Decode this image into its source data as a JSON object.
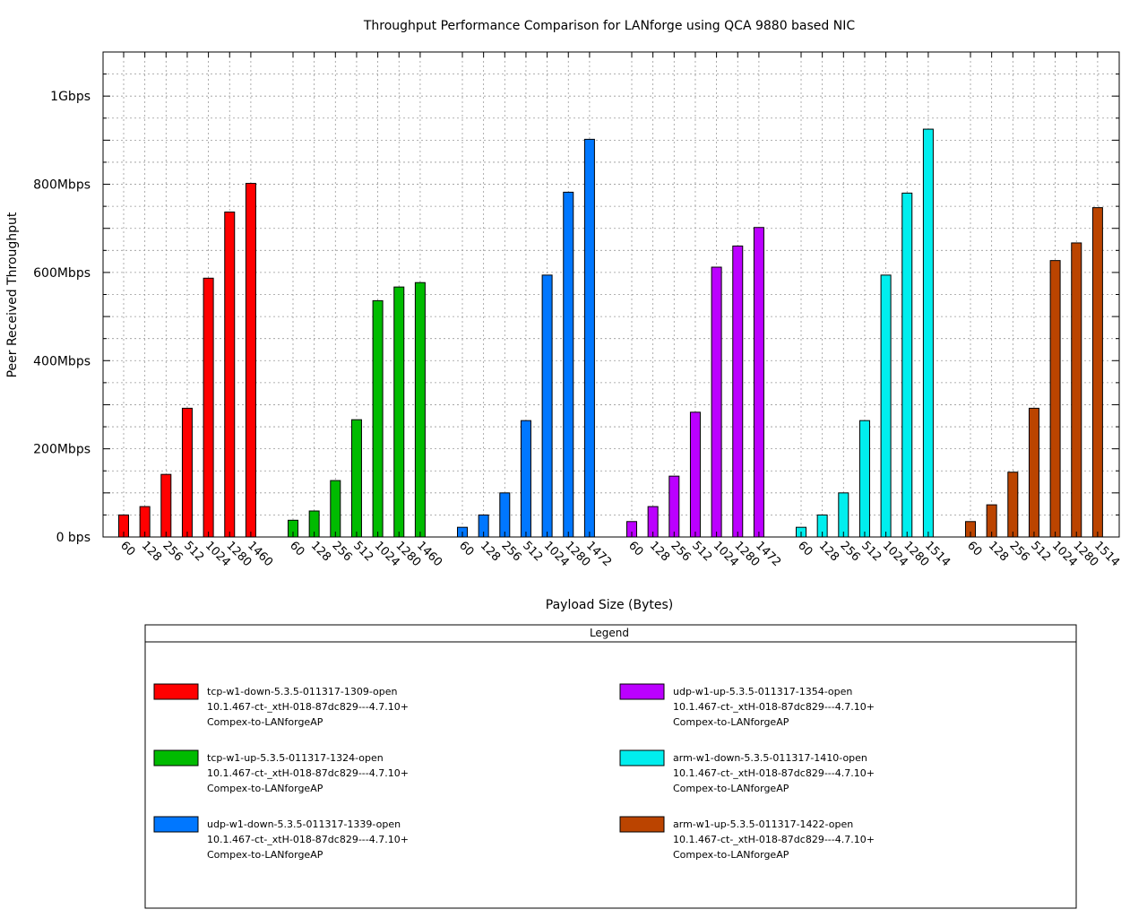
{
  "chart_data": {
    "type": "bar",
    "title": "Throughput Performance Comparison for LANforge using QCA 9880 based NIC",
    "xlabel": "Payload Size (Bytes)",
    "ylabel": "Peer Received Throughput",
    "ylim_mbps": [
      0,
      1100
    ],
    "yticks": [
      {
        "value": 0,
        "label": "0 bps"
      },
      {
        "value": 200,
        "label": "200Mbps"
      },
      {
        "value": 400,
        "label": "400Mbps"
      },
      {
        "value": 600,
        "label": "600Mbps"
      },
      {
        "value": 800,
        "label": "800Mbps"
      },
      {
        "value": 1000,
        "label": "1Gbps"
      }
    ],
    "grid": true,
    "legend": {
      "title": "Legend",
      "placement": "bottom",
      "entries": [
        {
          "lines": [
            "tcp-w1-down-5.3.5-011317-1309-open",
            "10.1.467-ct-_xtH-018-87dc829---4.7.10+",
            "Compex-to-LANforgeAP"
          ],
          "color": "#ff0000"
        },
        {
          "lines": [
            "tcp-w1-up-5.3.5-011317-1324-open",
            "10.1.467-ct-_xtH-018-87dc829---4.7.10+",
            "Compex-to-LANforgeAP"
          ],
          "color": "#00bb00"
        },
        {
          "lines": [
            "udp-w1-down-5.3.5-011317-1339-open",
            "10.1.467-ct-_xtH-018-87dc829---4.7.10+",
            "Compex-to-LANforgeAP"
          ],
          "color": "#0077ff"
        },
        {
          "lines": [
            "udp-w1-up-5.3.5-011317-1354-open",
            "10.1.467-ct-_xtH-018-87dc829---4.7.10+",
            "Compex-to-LANforgeAP"
          ],
          "color": "#bb00ff"
        },
        {
          "lines": [
            "arm-w1-down-5.3.5-011317-1410-open",
            "10.1.467-ct-_xtH-018-87dc829---4.7.10+",
            "Compex-to-LANforgeAP"
          ],
          "color": "#00eeee"
        },
        {
          "lines": [
            "arm-w1-up-5.3.5-011317-1422-open",
            "10.1.467-ct-_xtH-018-87dc829---4.7.10+",
            "Compex-to-LANforgeAP"
          ],
          "color": "#bb4400"
        }
      ]
    },
    "series": [
      {
        "color": "#ff0000",
        "categories": [
          "60",
          "128",
          "256",
          "512",
          "1024",
          "1280",
          "1460"
        ],
        "values": [
          50,
          69,
          142,
          292,
          587,
          737,
          802
        ]
      },
      {
        "color": "#00bb00",
        "categories": [
          "60",
          "128",
          "256",
          "512",
          "1024",
          "1280",
          "1460"
        ],
        "values": [
          38,
          59,
          128,
          266,
          536,
          567,
          577
        ]
      },
      {
        "color": "#0077ff",
        "categories": [
          "60",
          "128",
          "256",
          "512",
          "1024",
          "1280",
          "1472"
        ],
        "values": [
          22,
          50,
          100,
          264,
          594,
          782,
          902
        ]
      },
      {
        "color": "#bb00ff",
        "categories": [
          "60",
          "128",
          "256",
          "512",
          "1024",
          "1280",
          "1472"
        ],
        "values": [
          35,
          69,
          138,
          283,
          612,
          660,
          702
        ]
      },
      {
        "color": "#00eeee",
        "categories": [
          "60",
          "128",
          "256",
          "512",
          "1024",
          "1280",
          "1514"
        ],
        "values": [
          22,
          50,
          100,
          264,
          594,
          780,
          925
        ]
      },
      {
        "color": "#bb4400",
        "categories": [
          "60",
          "128",
          "256",
          "512",
          "1024",
          "1280",
          "1514"
        ],
        "values": [
          35,
          73,
          147,
          292,
          627,
          667,
          747
        ]
      }
    ]
  }
}
